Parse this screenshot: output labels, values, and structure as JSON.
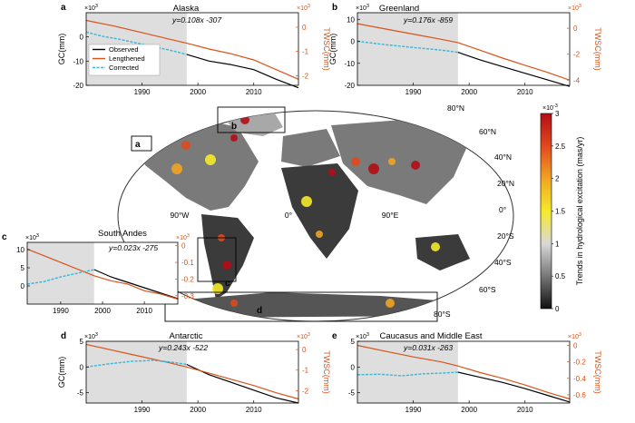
{
  "chart_data": {
    "type": "line",
    "map": {
      "colorbar_label": "Trends in hydrological excitation (mas/yr)",
      "colorbar_ticks": [
        "0",
        "0.5",
        "1",
        "1.5",
        "2",
        "2.5",
        "3"
      ],
      "colorbar_exponent": "×10",
      "colorbar_exponent_power": "-3",
      "colorbar_range": [
        0,
        3
      ],
      "colormap": [
        "#101010",
        "#777777",
        "#d8d8d8",
        "#f5ea2a",
        "#f0a422",
        "#e0491d",
        "#b30d16"
      ],
      "lat_labels": [
        "80°N",
        "60°N",
        "40°N",
        "20°N",
        "0°",
        "20°S",
        "40°S",
        "60°S",
        "80°S"
      ],
      "lon_labels": [
        "90°W",
        "0°",
        "90°E"
      ],
      "region_labels": [
        "a",
        "b",
        "c",
        "d"
      ]
    },
    "panels": [
      {
        "id": "a",
        "title": "Alaska",
        "equation": "y=0.108x -307",
        "xlim": [
          1980,
          2018
        ],
        "xticks": [
          "1990",
          "2000",
          "2010"
        ],
        "ylabel": "GC(mm)",
        "ylim": [
          -20,
          10
        ],
        "yticks": [
          "0",
          "-10",
          "-20"
        ],
        "y_exponent": "×10",
        "y_exponent_power": "3",
        "y2label": "TWSC(mm)",
        "y2lim": [
          -2.4,
          0.6
        ],
        "y2ticks": [
          "0",
          "-1",
          "-2"
        ],
        "y2_exponent": "×10",
        "y2_exponent_power": "3",
        "shade": [
          1980,
          1998
        ],
        "legend": [
          "Observed",
          "Lengthened",
          "Corrected"
        ],
        "series": [
          {
            "name": "Observed",
            "color": "#000000",
            "axis": "left",
            "x": [
              1998,
              2002,
              2006,
              2010,
              2014,
              2018
            ],
            "y": [
              -7.2,
              -10.0,
              -11.5,
              -13.5,
              -17.5,
              -21.0
            ]
          },
          {
            "name": "Lengthened",
            "color": "#d95319",
            "axis": "right",
            "x": [
              1980,
              1985,
              1990,
              1995,
              1998,
              2002,
              2006,
              2010,
              2014,
              2018
            ],
            "y": [
              0.28,
              0.05,
              -0.22,
              -0.5,
              -0.66,
              -0.9,
              -1.1,
              -1.35,
              -1.75,
              -2.15
            ]
          },
          {
            "name": "Corrected",
            "color": "#36b6d8",
            "axis": "left",
            "x": [
              1980,
              1983,
              1986,
              1989,
              1992,
              1995,
              1998
            ],
            "y": [
              2.0,
              0.2,
              -1.0,
              -2.5,
              -4.0,
              -5.5,
              -7.2
            ]
          }
        ]
      },
      {
        "id": "b",
        "title": "Greenland",
        "equation": "y=0.176x -859",
        "xlim": [
          1980,
          2018
        ],
        "xticks": [
          "1990",
          "2000",
          "2010"
        ],
        "ylabel": "GC(mm)",
        "ylim": [
          -20,
          13
        ],
        "yticks": [
          "10",
          "0",
          "-10",
          "-20"
        ],
        "y_exponent": "×10",
        "y_exponent_power": "3",
        "y2label": "TWSC(mm)",
        "y2lim": [
          -4.4,
          1.2
        ],
        "y2ticks": [
          "0",
          "-2",
          "-4"
        ],
        "y2_exponent": "×10",
        "y2_exponent_power": "3",
        "shade": [
          1980,
          1998
        ],
        "series": [
          {
            "name": "Observed",
            "color": "#000000",
            "axis": "left",
            "x": [
              1998,
              2002,
              2006,
              2010,
              2014,
              2018
            ],
            "y": [
              -5.0,
              -8.5,
              -11.5,
              -14.5,
              -17.5,
              -20.5
            ]
          },
          {
            "name": "Lengthened",
            "color": "#d95319",
            "axis": "right",
            "x": [
              1980,
              1985,
              1990,
              1995,
              1998,
              2002,
              2006,
              2010,
              2014,
              2018
            ],
            "y": [
              0.35,
              -0.05,
              -0.45,
              -0.85,
              -1.1,
              -1.7,
              -2.3,
              -2.85,
              -3.4,
              -4.0
            ]
          },
          {
            "name": "Corrected",
            "color": "#36b6d8",
            "axis": "left",
            "x": [
              1980,
              1985,
              1990,
              1995,
              1998
            ],
            "y": [
              0.0,
              -1.5,
              -2.8,
              -4.0,
              -5.0
            ]
          }
        ]
      },
      {
        "id": "c",
        "title": "South Andes",
        "equation": "y=0.023x -275",
        "xlim": [
          1982,
          2018
        ],
        "xticks": [
          "1990",
          "2000",
          "2010"
        ],
        "ylabel": "",
        "ylim": [
          -5,
          12
        ],
        "yticks": [
          "10",
          "5",
          "0"
        ],
        "y_exponent": "×10",
        "y_exponent_power": "3",
        "y2label": "",
        "y2lim": [
          -0.35,
          0.02
        ],
        "y2ticks": [
          "0",
          "-0.1",
          "-0.2",
          "-0.3"
        ],
        "y2_exponent": "×10",
        "y2_exponent_power": "3",
        "shade": [
          1982,
          1998
        ],
        "series": [
          {
            "name": "Observed",
            "color": "#000000",
            "axis": "left",
            "x": [
              1998,
              2002,
              2006,
              2010,
              2014,
              2018
            ],
            "y": [
              4.5,
              2.5,
              1.0,
              -0.5,
              -2.0,
              -3.5
            ]
          },
          {
            "name": "Lengthened",
            "color": "#d95319",
            "axis": "right",
            "x": [
              1982,
              1986,
              1990,
              1994,
              1998,
              2002,
              2006,
              2010,
              2014,
              2018
            ],
            "y": [
              -0.02,
              -0.06,
              -0.1,
              -0.14,
              -0.18,
              -0.21,
              -0.23,
              -0.27,
              -0.29,
              -0.32
            ]
          },
          {
            "name": "Corrected",
            "color": "#36b6d8",
            "axis": "left",
            "x": [
              1982,
              1986,
              1990,
              1994,
              1998
            ],
            "y": [
              0.5,
              1.2,
              2.5,
              3.5,
              4.5
            ]
          }
        ]
      },
      {
        "id": "d",
        "title": "Antarctic",
        "equation": "y=0.243x -522",
        "xlim": [
          1980,
          2018
        ],
        "xticks": [
          "1990",
          "2000",
          "2010"
        ],
        "ylabel": "GC(mm)",
        "ylim": [
          -7,
          5
        ],
        "yticks": [
          "5",
          "0",
          "-5"
        ],
        "y_exponent": "×10",
        "y_exponent_power": "3",
        "y2label": "TWSC(mm)",
        "y2lim": [
          -2.6,
          0.4
        ],
        "y2ticks": [
          "0",
          "-1",
          "-2"
        ],
        "y2_exponent": "×10",
        "y2_exponent_power": "3",
        "shade": [
          1980,
          1998
        ],
        "series": [
          {
            "name": "Observed",
            "color": "#000000",
            "axis": "left",
            "x": [
              1998,
              2002,
              2006,
              2010,
              2014,
              2018
            ],
            "y": [
              0.5,
              -1.5,
              -3.0,
              -4.5,
              -6.0,
              -7.0
            ]
          },
          {
            "name": "Lengthened",
            "color": "#d95319",
            "axis": "right",
            "x": [
              1980,
              1985,
              1990,
              1995,
              1998,
              2002,
              2006,
              2010,
              2014,
              2018
            ],
            "y": [
              0.25,
              -0.05,
              -0.35,
              -0.65,
              -0.85,
              -1.15,
              -1.45,
              -1.75,
              -2.1,
              -2.4
            ]
          },
          {
            "name": "Corrected",
            "color": "#36b6d8",
            "axis": "left",
            "x": [
              1980,
              1984,
              1988,
              1992,
              1995,
              1998
            ],
            "y": [
              0.0,
              0.6,
              1.1,
              1.3,
              1.0,
              0.5
            ]
          }
        ]
      },
      {
        "id": "e",
        "title": "Caucasus and Middle East",
        "equation": "y=0.031x -263",
        "xlim": [
          1980,
          2018
        ],
        "xticks": [
          "1990",
          "2000",
          "2010"
        ],
        "ylabel": "",
        "ylim": [
          -7,
          5
        ],
        "yticks": [
          "5",
          "0",
          "-5"
        ],
        "y_exponent": "×10",
        "y_exponent_power": "3",
        "y2label": "TWSC(mm)",
        "y2lim": [
          -0.7,
          0.05
        ],
        "y2ticks": [
          "0",
          "-0.2",
          "-0.4",
          "-0.6"
        ],
        "y2_exponent": "×10",
        "y2_exponent_power": "3",
        "shade": [
          1980,
          1998
        ],
        "series": [
          {
            "name": "Observed",
            "color": "#000000",
            "axis": "left",
            "x": [
              1998,
              2002,
              2006,
              2010,
              2014,
              2018
            ],
            "y": [
              -1.0,
              -2.0,
              -3.0,
              -4.2,
              -5.5,
              -6.8
            ]
          },
          {
            "name": "Lengthened",
            "color": "#d95319",
            "axis": "right",
            "x": [
              1980,
              1985,
              1990,
              1995,
              1998,
              2002,
              2006,
              2010,
              2014,
              2018
            ],
            "y": [
              0.0,
              -0.07,
              -0.14,
              -0.2,
              -0.25,
              -0.33,
              -0.4,
              -0.48,
              -0.57,
              -0.65
            ]
          },
          {
            "name": "Corrected",
            "color": "#36b6d8",
            "axis": "left",
            "x": [
              1980,
              1984,
              1988,
              1992,
              1995,
              1998
            ],
            "y": [
              -1.5,
              -1.4,
              -1.7,
              -1.3,
              -1.2,
              -1.0
            ]
          }
        ]
      }
    ]
  }
}
